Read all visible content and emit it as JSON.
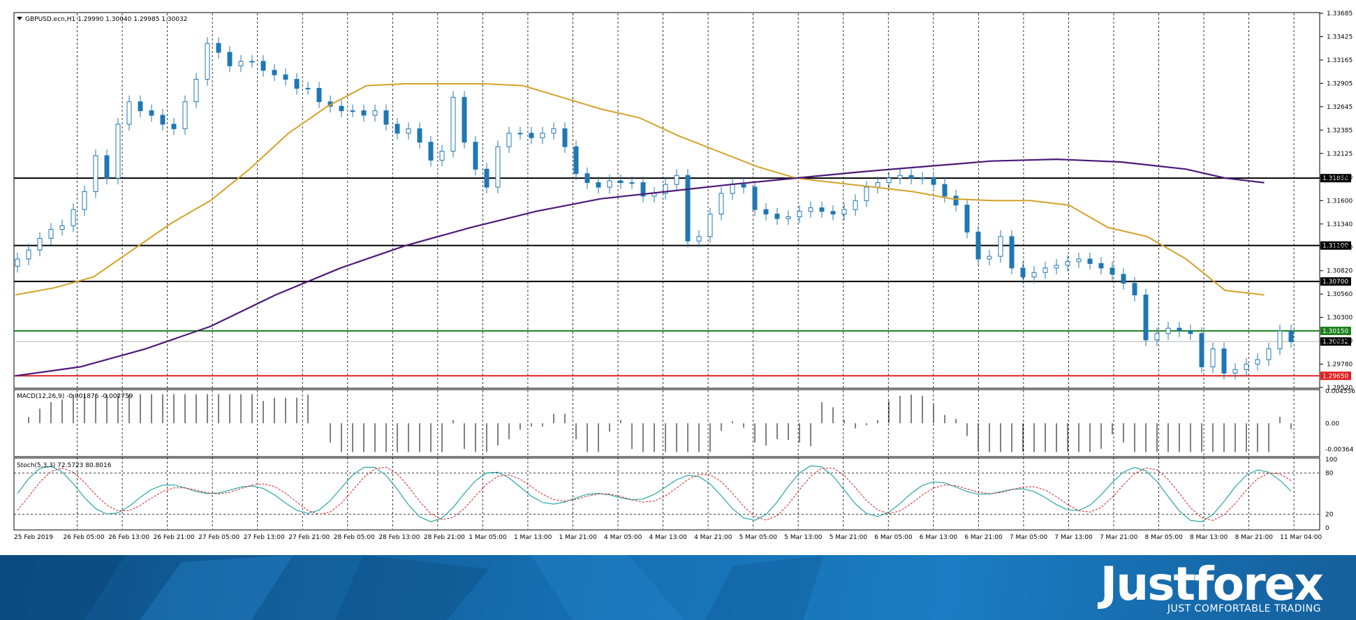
{
  "chart_data": {
    "type": "candlestick",
    "symbol_header": "GBPUSD.ecn,H1  1.29990 1.30040 1.29985 1.30032",
    "ylim": [
      1.2952,
      1.33685
    ],
    "price_ticks": [
      "1.33685",
      "1.33425",
      "1.33165",
      "1.32905",
      "1.32645",
      "1.32385",
      "1.32125",
      "1.31860",
      "1.31600",
      "1.31340",
      "1.31080",
      "1.30820",
      "1.30560",
      "1.30300",
      "1.30040",
      "1.29780",
      "1.29520"
    ],
    "time_labels": [
      "25 Feb 2019",
      "26 Feb 05:00",
      "26 Feb 13:00",
      "26 Feb 21:00",
      "27 Feb 05:00",
      "27 Feb 13:00",
      "27 Feb 21:00",
      "28 Feb 05:00",
      "28 Feb 13:00",
      "28 Feb 21:00",
      "1 Mar 05:00",
      "1 Mar 13:00",
      "1 Mar 21:00",
      "4 Mar 05:00",
      "4 Mar 13:00",
      "4 Mar 21:00",
      "5 Mar 05:00",
      "5 Mar 13:00",
      "5 Mar 21:00",
      "6 Mar 05:00",
      "6 Mar 13:00",
      "6 Mar 21:00",
      "7 Mar 05:00",
      "7 Mar 13:00",
      "7 Mar 21:00",
      "8 Mar 05:00",
      "8 Mar 13:00",
      "8 Mar 21:00",
      "11 Mar 04:00"
    ],
    "levels": [
      {
        "price": 1.3185,
        "label": "1.31850",
        "color": "#000000"
      },
      {
        "price": 1.311,
        "label": "1.31100",
        "color": "#000000"
      },
      {
        "price": 1.307,
        "label": "1.30700",
        "color": "#000000"
      },
      {
        "price": 1.3015,
        "label": "1.30150",
        "color": "#1a7f1a"
      },
      {
        "price": 1.2965,
        "label": "1.29650",
        "color": "#e02020"
      }
    ],
    "current_price": {
      "price": 1.30032,
      "label": "1.30032"
    },
    "ma_fast_path": [
      [
        0,
        1.3055
      ],
      [
        0.03,
        1.3063
      ],
      [
        0.06,
        1.3075
      ],
      [
        0.09,
        1.3105
      ],
      [
        0.12,
        1.3135
      ],
      [
        0.15,
        1.316
      ],
      [
        0.18,
        1.3195
      ],
      [
        0.21,
        1.3235
      ],
      [
        0.24,
        1.3265
      ],
      [
        0.27,
        1.3288
      ],
      [
        0.3,
        1.329
      ],
      [
        0.33,
        1.329
      ],
      [
        0.36,
        1.329
      ],
      [
        0.39,
        1.3288
      ],
      [
        0.42,
        1.3275
      ],
      [
        0.45,
        1.3262
      ],
      [
        0.48,
        1.3252
      ],
      [
        0.51,
        1.3232
      ],
      [
        0.54,
        1.3215
      ],
      [
        0.57,
        1.3198
      ],
      [
        0.6,
        1.3185
      ],
      [
        0.63,
        1.318
      ],
      [
        0.66,
        1.3175
      ],
      [
        0.69,
        1.317
      ],
      [
        0.72,
        1.3162
      ],
      [
        0.75,
        1.316
      ],
      [
        0.78,
        1.316
      ],
      [
        0.81,
        1.3155
      ],
      [
        0.84,
        1.313
      ],
      [
        0.87,
        1.312
      ],
      [
        0.9,
        1.3095
      ],
      [
        0.93,
        1.306
      ],
      [
        0.96,
        1.3055
      ]
    ],
    "ma_slow_path": [
      [
        0,
        1.2965
      ],
      [
        0.05,
        1.2975
      ],
      [
        0.1,
        1.2995
      ],
      [
        0.15,
        1.302
      ],
      [
        0.2,
        1.3055
      ],
      [
        0.25,
        1.3085
      ],
      [
        0.3,
        1.311
      ],
      [
        0.35,
        1.313
      ],
      [
        0.4,
        1.3148
      ],
      [
        0.45,
        1.3162
      ],
      [
        0.5,
        1.317
      ],
      [
        0.55,
        1.3178
      ],
      [
        0.6,
        1.3185
      ],
      [
        0.65,
        1.3192
      ],
      [
        0.7,
        1.3198
      ],
      [
        0.75,
        1.3204
      ],
      [
        0.8,
        1.3206
      ],
      [
        0.85,
        1.3203
      ],
      [
        0.9,
        1.3195
      ],
      [
        0.93,
        1.3185
      ],
      [
        0.96,
        1.318
      ]
    ],
    "candles_close": [
      1.3095,
      1.3105,
      1.3118,
      1.3128,
      1.3132,
      1.315,
      1.317,
      1.321,
      1.3185,
      1.3245,
      1.327,
      1.326,
      1.3255,
      1.3245,
      1.324,
      1.327,
      1.3295,
      1.3335,
      1.3325,
      1.331,
      1.3315,
      1.3315,
      1.3305,
      1.33,
      1.3295,
      1.3285,
      1.3285,
      1.327,
      1.3265,
      1.326,
      1.326,
      1.3255,
      1.326,
      1.3245,
      1.3235,
      1.324,
      1.3225,
      1.3205,
      1.3215,
      1.3275,
      1.3225,
      1.3195,
      1.3175,
      1.322,
      1.3235,
      1.3235,
      1.323,
      1.3235,
      1.324,
      1.322,
      1.319,
      1.318,
      1.3175,
      1.3182,
      1.318,
      1.318,
      1.3165,
      1.3168,
      1.3178,
      1.3188,
      1.3115,
      1.312,
      1.3145,
      1.3168,
      1.3178,
      1.3175,
      1.315,
      1.3145,
      1.314,
      1.3142,
      1.3148,
      1.3152,
      1.3148,
      1.3145,
      1.315,
      1.316,
      1.3175,
      1.318,
      1.3185,
      1.3188,
      1.3185,
      1.3185,
      1.3178,
      1.3165,
      1.3155,
      1.3125,
      1.3095,
      1.3098,
      1.312,
      1.3085,
      1.3075,
      1.308,
      1.3085,
      1.3088,
      1.3092,
      1.3095,
      1.309,
      1.3085,
      1.3078,
      1.3068,
      1.3055,
      1.3005,
      1.3012,
      1.3018,
      1.3015,
      1.3012,
      1.2975,
      1.2995,
      1.2968,
      1.2972,
      1.2978,
      1.2983,
      1.2995,
      1.3015,
      1.3003
    ],
    "macd": {
      "label": "MACD(12,26,9) -0.001876 -0.002759",
      "ticks": [
        "0.004556",
        "0.00",
        "-0.00364"
      ],
      "ylim": [
        -0.0045,
        0.00455
      ]
    },
    "stoch": {
      "label": "Stoch(5,3,3) 72.5723 80.8016",
      "ticks": [
        "100",
        "80",
        "20",
        "0"
      ],
      "ylim": [
        0,
        100
      ]
    }
  },
  "footer": {
    "brand": "Justforex",
    "tagline": "JUST COMFORTABLE TRADING"
  },
  "colors": {
    "bull": "#1f77b4",
    "bear": "#1f77b4",
    "ma_fast": "#d4a12a",
    "ma_slow": "#4b1a7a",
    "stoch_main": "#2aa5a5",
    "stoch_signal": "#d62020",
    "header_label_bg": "#000000"
  }
}
